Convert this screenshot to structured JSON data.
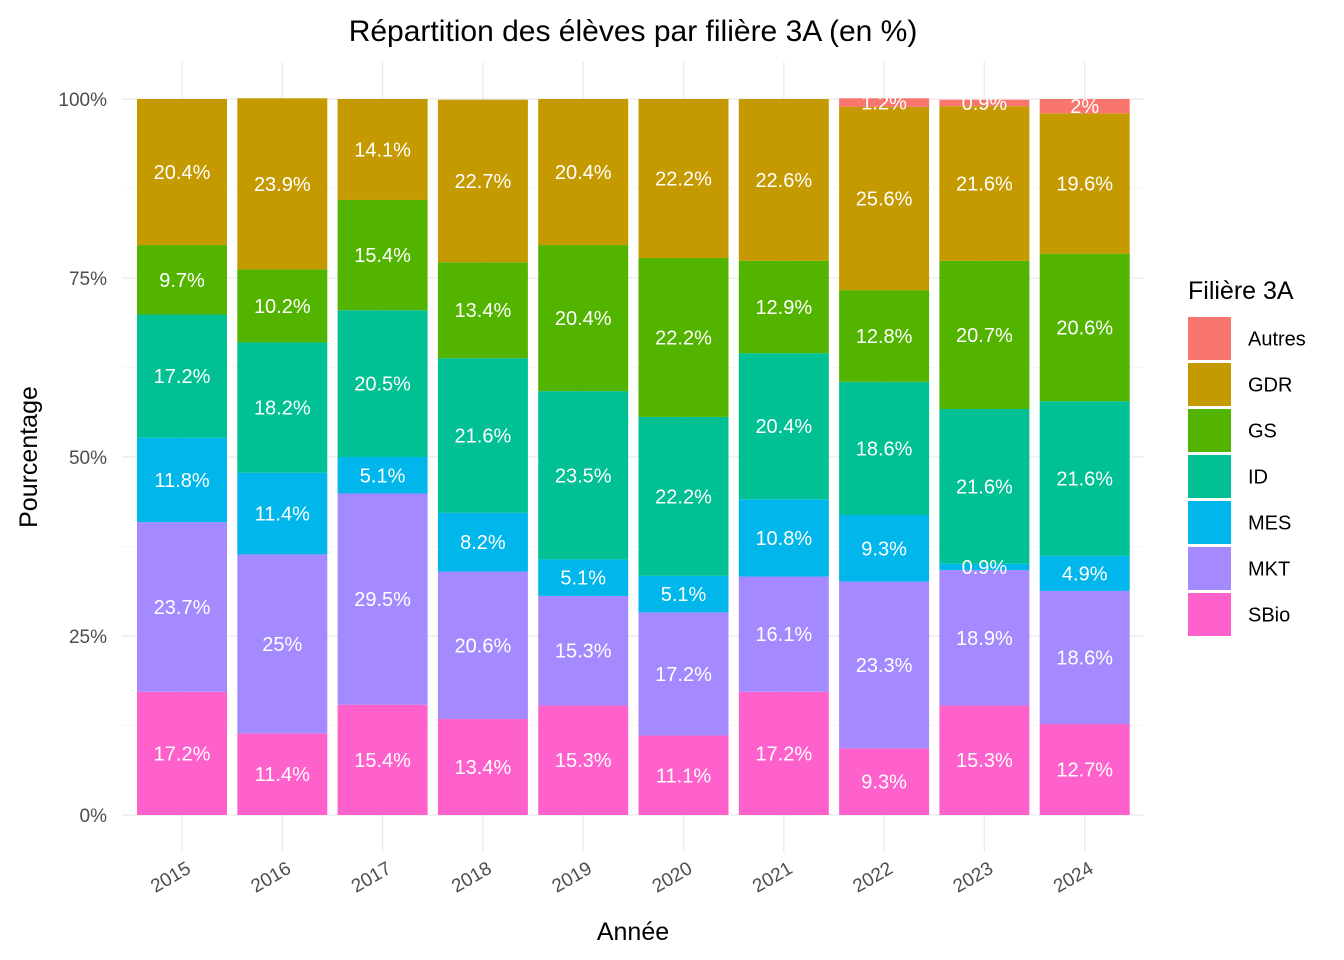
{
  "chart_data": {
    "type": "bar",
    "stacked": true,
    "title": "Répartition des élèves par filière 3A (en %)",
    "xlabel": "Année",
    "ylabel": "Pourcentage",
    "ylim": [
      0,
      100
    ],
    "y_ticks": [
      {
        "value": 0,
        "label": "0%"
      },
      {
        "value": 25,
        "label": "25%"
      },
      {
        "value": 50,
        "label": "50%"
      },
      {
        "value": 75,
        "label": "75%"
      },
      {
        "value": 100,
        "label": "100%"
      }
    ],
    "grid": true,
    "legend_title": "Filière 3A",
    "legend_position": "right",
    "categories": [
      "2015",
      "2016",
      "2017",
      "2018",
      "2019",
      "2020",
      "2021",
      "2022",
      "2023",
      "2024"
    ],
    "series": [
      {
        "name": "SBio",
        "color": "#FF61CC",
        "values": [
          17.2,
          11.4,
          15.4,
          13.4,
          15.3,
          11.1,
          17.2,
          9.3,
          15.3,
          12.7
        ],
        "labels": [
          "17.2%",
          "11.4%",
          "15.4%",
          "13.4%",
          "15.3%",
          "11.1%",
          "17.2%",
          "9.3%",
          "15.3%",
          "12.7%"
        ]
      },
      {
        "name": "MKT",
        "color": "#A58AFF",
        "values": [
          23.7,
          25,
          29.5,
          20.6,
          15.3,
          17.2,
          16.1,
          23.3,
          18.9,
          18.6
        ],
        "labels": [
          "23.7%",
          "25%",
          "29.5%",
          "20.6%",
          "15.3%",
          "17.2%",
          "16.1%",
          "23.3%",
          "18.9%",
          "18.6%"
        ]
      },
      {
        "name": "MES",
        "color": "#00B6EB",
        "values": [
          11.8,
          11.4,
          5.1,
          8.2,
          5.1,
          5.1,
          10.8,
          9.3,
          0.9,
          4.9
        ],
        "labels": [
          "11.8%",
          "11.4%",
          "5.1%",
          "8.2%",
          "5.1%",
          "5.1%",
          "10.8%",
          "9.3%",
          "0.9%",
          "4.9%"
        ]
      },
      {
        "name": "ID",
        "color": "#00C094",
        "values": [
          17.2,
          18.2,
          20.5,
          21.6,
          23.5,
          22.2,
          20.4,
          18.6,
          21.6,
          21.6
        ],
        "labels": [
          "17.2%",
          "18.2%",
          "20.5%",
          "21.6%",
          "23.5%",
          "22.2%",
          "20.4%",
          "18.6%",
          "21.6%",
          "21.6%"
        ]
      },
      {
        "name": "GS",
        "color": "#53B400",
        "values": [
          9.7,
          10.2,
          15.4,
          13.4,
          20.4,
          22.2,
          12.9,
          12.8,
          20.7,
          20.6
        ],
        "labels": [
          "9.7%",
          "10.2%",
          "15.4%",
          "13.4%",
          "20.4%",
          "22.2%",
          "12.9%",
          "12.8%",
          "20.7%",
          "20.6%"
        ]
      },
      {
        "name": "GDR",
        "color": "#C49A00",
        "values": [
          20.4,
          23.9,
          14.1,
          22.7,
          20.4,
          22.2,
          22.6,
          25.6,
          21.6,
          19.6
        ],
        "labels": [
          "20.4%",
          "23.9%",
          "14.1%",
          "22.7%",
          "20.4%",
          "22.2%",
          "22.6%",
          "25.6%",
          "21.6%",
          "19.6%"
        ]
      },
      {
        "name": "Autres",
        "color": "#F8766D",
        "values": [
          0,
          0,
          0,
          0,
          0,
          0,
          0,
          1.2,
          0.9,
          2
        ],
        "labels": [
          "",
          "",
          "",
          "",
          "",
          "",
          "",
          "1.2%",
          "0.9%",
          "2%"
        ]
      }
    ],
    "legend_order": [
      "Autres",
      "GDR",
      "GS",
      "ID",
      "MES",
      "MKT",
      "SBio"
    ]
  }
}
